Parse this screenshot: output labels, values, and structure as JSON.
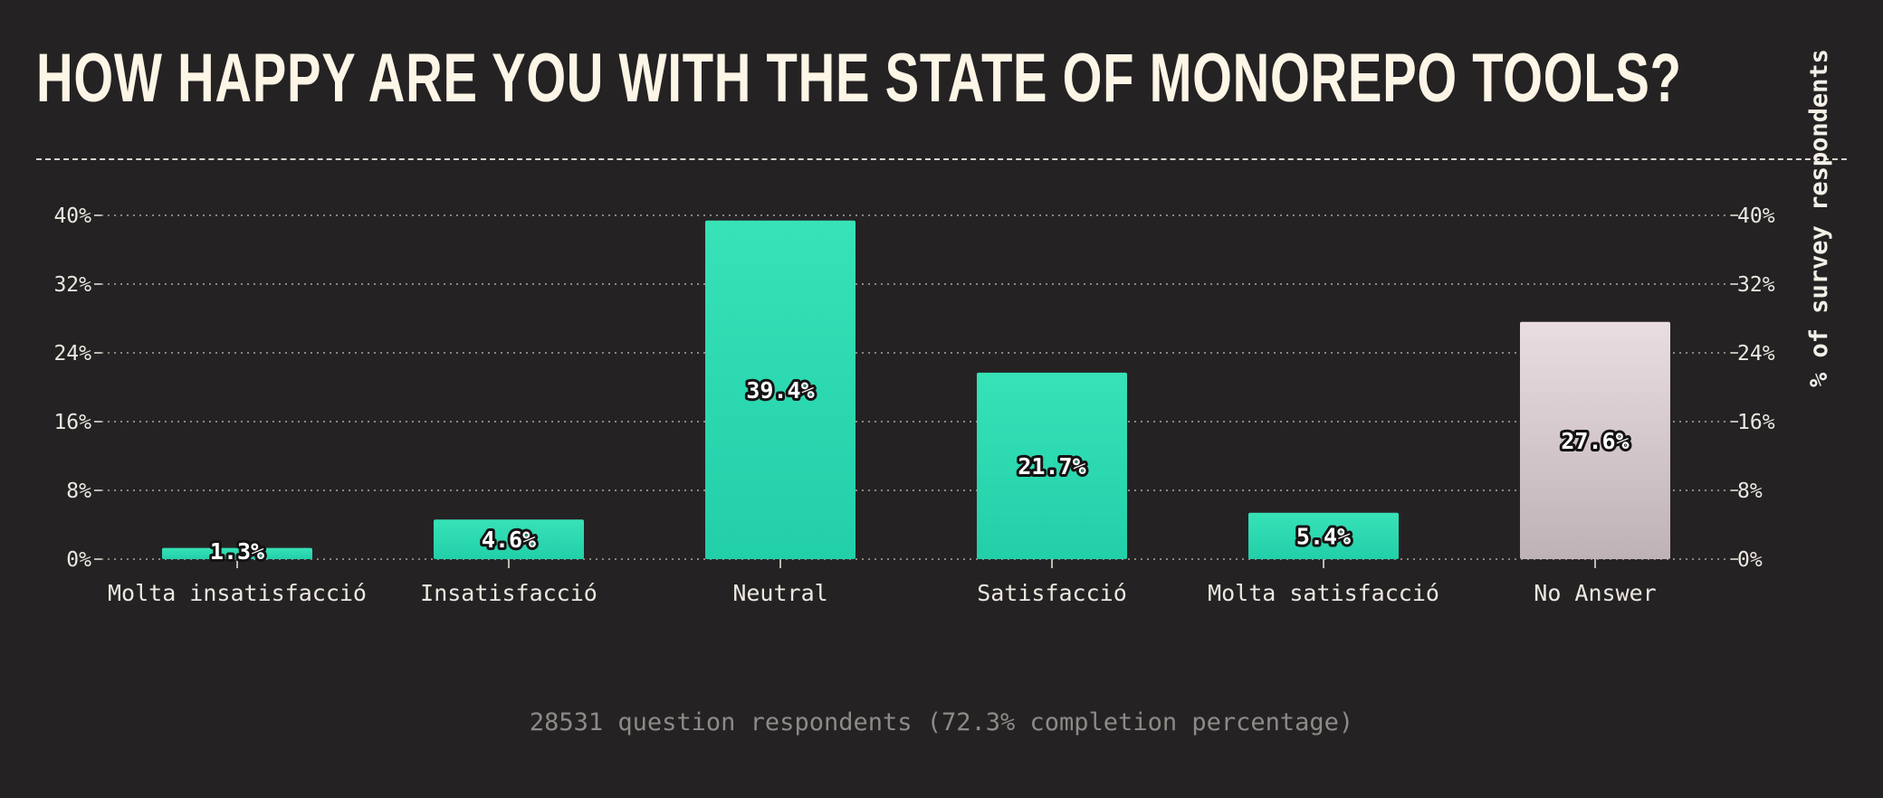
{
  "title": "HOW HAPPY ARE YOU WITH THE STATE OF MONOREPO TOOLS?",
  "footnote": "28531 question respondents (72.3% completion percentage)",
  "colors": {
    "background": "#252224",
    "bar": "#2ad9b0",
    "bar_top": "#37e2b7",
    "no_answer_bar": "#c9bbc0",
    "no_answer_top": "#eaddE2",
    "grid": "#8a8680"
  },
  "chart_data": {
    "type": "bar",
    "categories": [
      "Molta insatisfacció",
      "Insatisfacció",
      "Neutral",
      "Satisfacció",
      "Molta satisfacció",
      "No Answer"
    ],
    "values": [
      1.3,
      4.6,
      39.4,
      21.7,
      5.4,
      27.6
    ],
    "value_labels": [
      "1.3%",
      "4.6%",
      "39.4%",
      "21.7%",
      "5.4%",
      "27.6%"
    ],
    "y_ticks": [
      "0%",
      "8%",
      "16%",
      "24%",
      "32%",
      "40%"
    ],
    "y_tick_values": [
      0,
      8,
      16,
      24,
      32,
      40
    ],
    "ylim": [
      0,
      40
    ],
    "ylabel_right": "% of survey respondents",
    "grid": true,
    "legend": "none"
  }
}
